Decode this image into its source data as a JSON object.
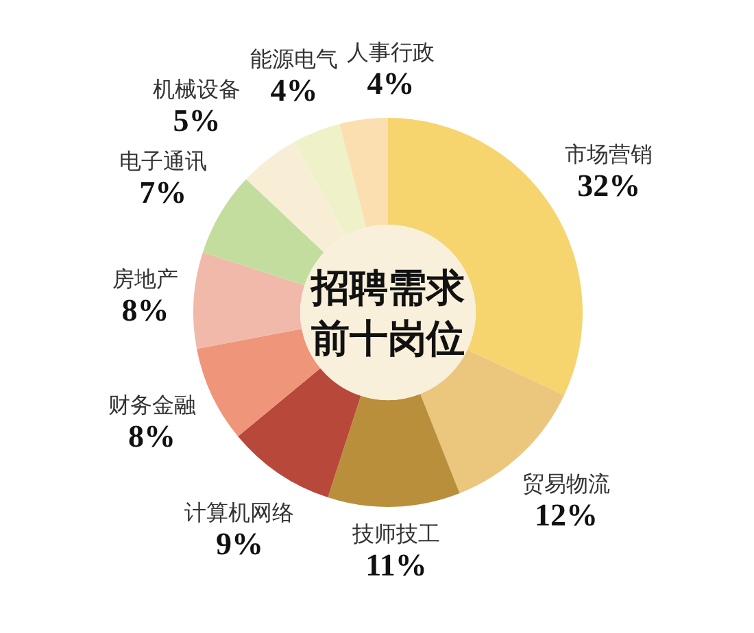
{
  "chart_data": {
    "type": "donut",
    "title": "招聘需求前十岗位",
    "categories": [
      "市场营销",
      "贸易物流",
      "技师技工",
      "计算机网络",
      "财务金融",
      "房地产",
      "电子通讯",
      "机械设备",
      "能源电气",
      "人事行政"
    ],
    "values": [
      32,
      12,
      11,
      9,
      8,
      8,
      7,
      5,
      4,
      4
    ],
    "value_labels": [
      "32%",
      "12%",
      "11%",
      "9%",
      "8%",
      "8%",
      "7%",
      "5%",
      "4%",
      "4%"
    ],
    "colors": [
      "#f6d46e",
      "#ebc77e",
      "#b98f3c",
      "#b8483a",
      "#ef957a",
      "#f1b9aa",
      "#c3dd9f",
      "#f8eed6",
      "#eff2c9",
      "#fbdfb0"
    ]
  }
}
